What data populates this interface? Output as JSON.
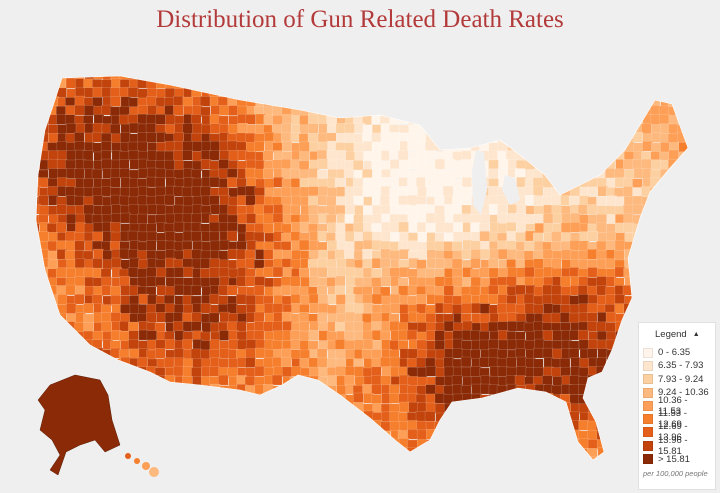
{
  "title": "Distribution of Gun Related Death Rates",
  "legend": {
    "heading": "Legend",
    "collapse_icon": "caret-up-icon",
    "unit_note": "per 100,000 people",
    "bins": [
      {
        "label": "0 - 6.35",
        "color": "#fff5eb"
      },
      {
        "label": "6.35 - 7.93",
        "color": "#fee6ce"
      },
      {
        "label": "7.93 - 9.24",
        "color": "#fdd0a2"
      },
      {
        "label": "9.24 - 10.36",
        "color": "#fdb97e"
      },
      {
        "label": "10.36 - 11.53",
        "color": "#fd9f56"
      },
      {
        "label": "11.53 - 12.69",
        "color": "#f67f2e"
      },
      {
        "label": "12.69 - 13.96",
        "color": "#e4601a"
      },
      {
        "label": "13.96 - 15.81",
        "color": "#c2440c"
      },
      {
        "label": "> 15.81",
        "color": "#8a2a06"
      }
    ]
  },
  "map": {
    "type": "choropleth",
    "geography": "United States counties"
  }
}
